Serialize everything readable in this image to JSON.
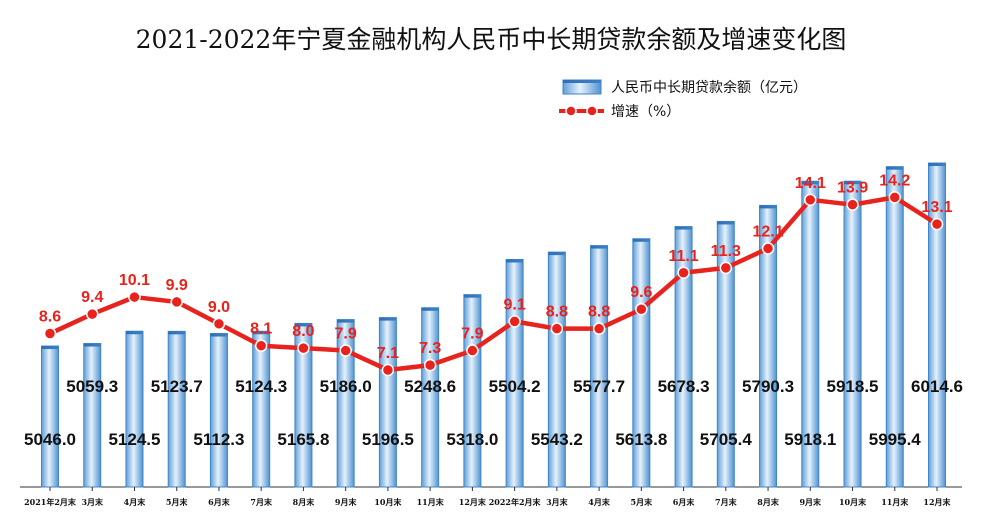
{
  "chart_data": {
    "type": "bar+line",
    "title": "2021-2022年宁夏金融机构人民币中长期贷款余额及增速变化图",
    "categories": [
      "2021年2月末",
      "3月末",
      "4月末",
      "5月末",
      "6月末",
      "7月末",
      "8月末",
      "9月末",
      "10月末",
      "11月末",
      "12月末",
      "2022年2月末",
      "3月末",
      "4月末",
      "5月末",
      "6月末",
      "7月末",
      "8月末",
      "9月末",
      "10月末",
      "11月末",
      "12月末"
    ],
    "series": [
      {
        "name": "人民币中长期贷款余额（亿元）",
        "kind": "bar",
        "color": "#5ba3e0",
        "values": [
          5046.0,
          5059.3,
          5124.5,
          5123.7,
          5112.3,
          5124.3,
          5165.8,
          5186.0,
          5196.5,
          5248.6,
          5318.0,
          5504.2,
          5543.2,
          5577.7,
          5613.8,
          5678.3,
          5705.4,
          5790.3,
          5918.1,
          5918.5,
          5995.4,
          6014.6
        ]
      },
      {
        "name": "增速（%）",
        "kind": "line",
        "color": "#e8221c",
        "values": [
          8.6,
          9.4,
          10.1,
          9.9,
          9.0,
          8.1,
          8.0,
          7.9,
          7.1,
          7.3,
          7.9,
          9.1,
          8.8,
          8.8,
          9.6,
          11.1,
          11.3,
          12.1,
          14.1,
          13.9,
          14.2,
          13.1
        ]
      }
    ],
    "bar_labels": [
      "5046.0",
      "5059.3",
      "5124.5",
      "5123.7",
      "5112.3",
      "5124.3",
      "5165.8",
      "5186.0",
      "5196.5",
      "5248.6",
      "5318.0",
      "5504.2",
      "5543.2",
      "5577.7",
      "5613.8",
      "5678.3",
      "5705.4",
      "5790.3",
      "5918.1",
      "5918.5",
      "5995.4",
      "6014.6"
    ],
    "rate_labels": [
      "8.6",
      "9.4",
      "10.1",
      "9.9",
      "9.0",
      "8.1",
      "8.0",
      "7.9",
      "7.1",
      "7.3",
      "7.9",
      "9.1",
      "8.8",
      "8.8",
      "9.6",
      "11.1",
      "11.3",
      "12.1",
      "14.1",
      "13.9",
      "14.2",
      "13.1"
    ],
    "bar_axis_range": [
      4300,
      6200
    ],
    "rate_axis_range": [
      2,
      18
    ],
    "legend_position": "top-right",
    "grid": false
  }
}
